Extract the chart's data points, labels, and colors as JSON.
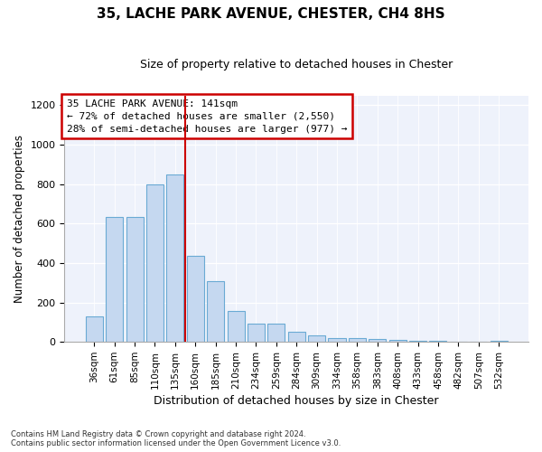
{
  "title_line1": "35, LACHE PARK AVENUE, CHESTER, CH4 8HS",
  "title_line2": "Size of property relative to detached houses in Chester",
  "xlabel": "Distribution of detached houses by size in Chester",
  "ylabel": "Number of detached properties",
  "categories": [
    "36sqm",
    "61sqm",
    "85sqm",
    "110sqm",
    "135sqm",
    "160sqm",
    "185sqm",
    "210sqm",
    "234sqm",
    "259sqm",
    "284sqm",
    "309sqm",
    "334sqm",
    "358sqm",
    "383sqm",
    "408sqm",
    "433sqm",
    "458sqm",
    "482sqm",
    "507sqm",
    "532sqm"
  ],
  "values": [
    128,
    635,
    635,
    800,
    850,
    435,
    310,
    158,
    92,
    92,
    50,
    35,
    18,
    18,
    15,
    12,
    5,
    5,
    0,
    0,
    5
  ],
  "bar_color": "#c5d8f0",
  "bar_edge_color": "#6aaad4",
  "annotation_line1": "35 LACHE PARK AVENUE: 141sqm",
  "annotation_line2": "← 72% of detached houses are smaller (2,550)",
  "annotation_line3": "28% of semi-detached houses are larger (977) →",
  "redline_color": "#cc0000",
  "annotation_box_color": "#ffffff",
  "annotation_box_edge_color": "#cc0000",
  "footnote": "Contains HM Land Registry data © Crown copyright and database right 2024.\nContains public sector information licensed under the Open Government Licence v3.0.",
  "ylim": [
    0,
    1250
  ],
  "yticks": [
    0,
    200,
    400,
    600,
    800,
    1000,
    1200
  ],
  "background_color": "#eef2fb"
}
